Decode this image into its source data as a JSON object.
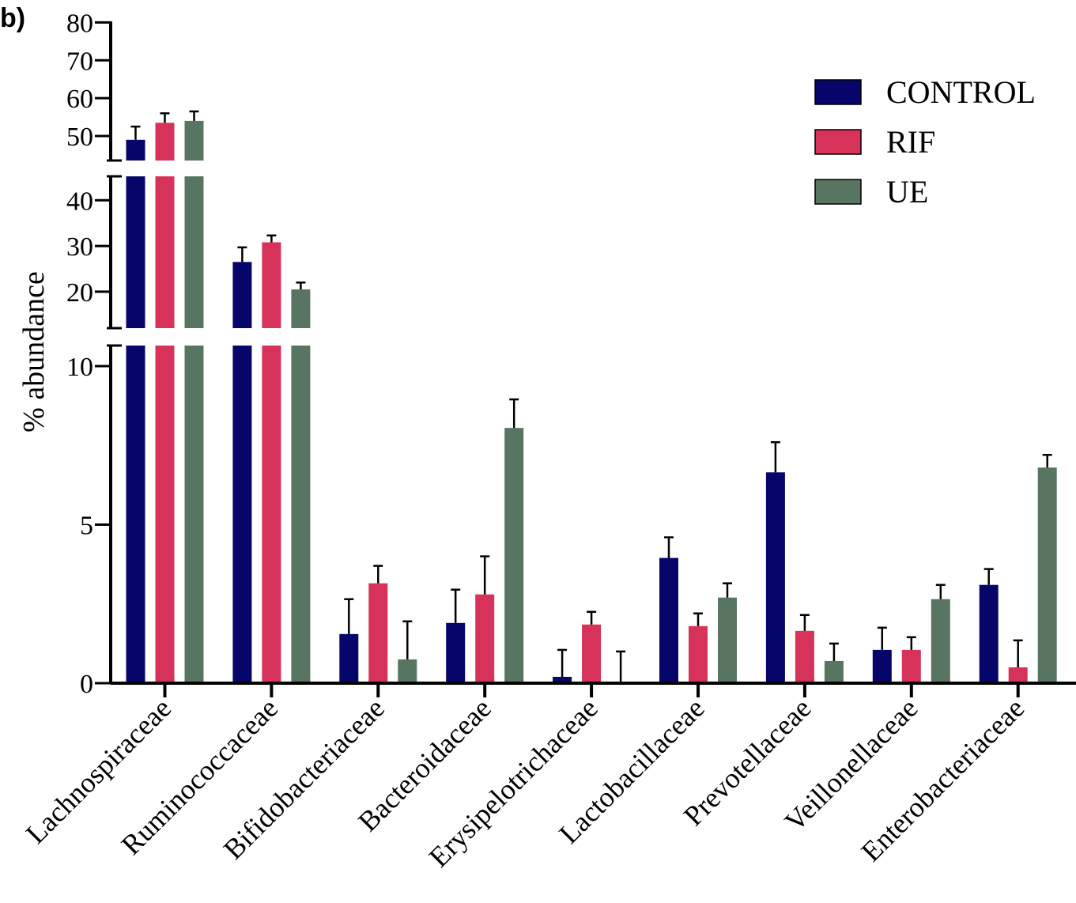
{
  "panel_label": "b)",
  "chart_data": {
    "type": "bar",
    "ylabel": "% abundance",
    "xlabel": "",
    "y_axis_breaks": [
      [
        0,
        11
      ],
      [
        11,
        45
      ],
      [
        45,
        80
      ]
    ],
    "y_ticks": [
      0,
      5,
      10,
      20,
      30,
      40,
      50,
      60,
      70,
      80
    ],
    "legend_position": "top-right",
    "categories": [
      "Lachnospiraceae",
      "Ruminococcaceae",
      "Bifidobacteriaceae",
      "Bacteroidaceae",
      "Erysipelotrichaceae",
      "Lactobacillaceae",
      "Prevotellaceae",
      "Veillonellaceae",
      "Enterobacteriaceae"
    ],
    "series": [
      {
        "name": "CONTROL",
        "color": "#06066a",
        "values": [
          49,
          26.5,
          1.55,
          1.9,
          0.2,
          3.95,
          6.65,
          1.05,
          3.1
        ],
        "errors": [
          3.5,
          3.2,
          1.1,
          1.05,
          0.85,
          0.65,
          0.95,
          0.7,
          0.5
        ]
      },
      {
        "name": "RIF",
        "color": "#d7325a",
        "values": [
          53.5,
          30.8,
          3.15,
          2.8,
          1.85,
          1.8,
          1.65,
          1.05,
          0.5
        ],
        "errors": [
          2.5,
          1.5,
          0.55,
          1.2,
          0.4,
          0.4,
          0.5,
          0.4,
          0.85
        ]
      },
      {
        "name": "UE",
        "color": "#577561",
        "values": [
          54,
          20.5,
          0.75,
          8.05,
          0.05,
          2.7,
          0.7,
          2.65,
          6.8
        ],
        "errors": [
          2.5,
          1.5,
          1.2,
          0.9,
          0.95,
          0.45,
          0.55,
          0.45,
          0.4
        ]
      }
    ]
  }
}
